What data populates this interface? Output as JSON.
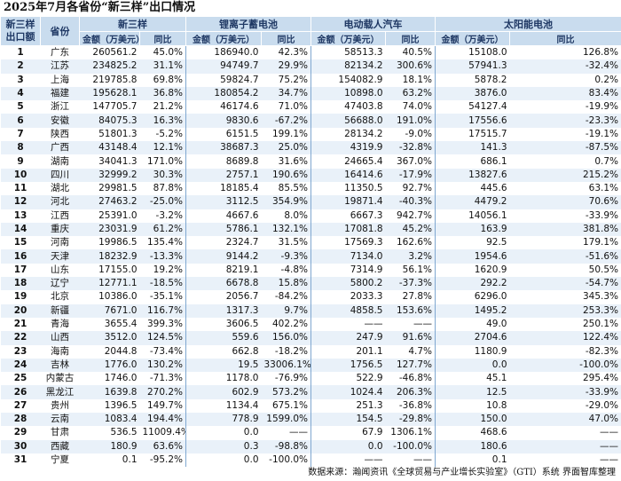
{
  "title": "2025年7月各省份“新三样”出口情况",
  "headers": {
    "rank": "新三样出口额",
    "province": "省份",
    "groups": [
      "新三样",
      "锂离子蓄电池",
      "电动载人汽车",
      "太阳能电池"
    ],
    "amount": "金额（万美元）",
    "yoy": "同比"
  },
  "rows": [
    {
      "rank": "1",
      "province": "广东",
      "v": [
        "260561.2",
        "45.0%",
        "186940.0",
        "42.3%",
        "58513.3",
        "40.5%",
        "15108.0",
        "126.8%"
      ]
    },
    {
      "rank": "2",
      "province": "江苏",
      "v": [
        "234825.2",
        "31.1%",
        "94749.7",
        "29.9%",
        "82134.2",
        "300.6%",
        "57941.3",
        "-32.4%"
      ]
    },
    {
      "rank": "3",
      "province": "上海",
      "v": [
        "219785.8",
        "69.8%",
        "59824.7",
        "75.2%",
        "154082.9",
        "18.1%",
        "5878.2",
        "0.2%"
      ]
    },
    {
      "rank": "4",
      "province": "福建",
      "v": [
        "195628.1",
        "36.8%",
        "180854.2",
        "34.7%",
        "10898.0",
        "63.2%",
        "3876.0",
        "83.4%"
      ]
    },
    {
      "rank": "5",
      "province": "浙江",
      "v": [
        "147705.7",
        "21.2%",
        "46174.6",
        "71.0%",
        "47403.8",
        "74.0%",
        "54127.4",
        "-19.9%"
      ]
    },
    {
      "rank": "6",
      "province": "安徽",
      "v": [
        "84075.3",
        "16.3%",
        "9830.6",
        "-67.2%",
        "56688.0",
        "191.0%",
        "17556.6",
        "-23.3%"
      ]
    },
    {
      "rank": "7",
      "province": "陕西",
      "v": [
        "51801.3",
        "-5.2%",
        "6151.5",
        "199.1%",
        "28134.2",
        "-9.0%",
        "17515.7",
        "-19.1%"
      ]
    },
    {
      "rank": "8",
      "province": "广西",
      "v": [
        "43148.4",
        "12.1%",
        "38687.3",
        "25.0%",
        "4319.9",
        "-32.8%",
        "141.3",
        "-87.5%"
      ]
    },
    {
      "rank": "9",
      "province": "湖南",
      "v": [
        "34041.3",
        "171.0%",
        "8689.8",
        "31.6%",
        "24665.4",
        "367.0%",
        "686.1",
        "0.7%"
      ]
    },
    {
      "rank": "10",
      "province": "四川",
      "v": [
        "32999.2",
        "30.3%",
        "2757.1",
        "190.6%",
        "16414.6",
        "-17.9%",
        "13827.6",
        "215.2%"
      ]
    },
    {
      "rank": "11",
      "province": "湖北",
      "v": [
        "29981.5",
        "87.8%",
        "18185.4",
        "85.5%",
        "11350.5",
        "92.7%",
        "445.6",
        "63.1%"
      ]
    },
    {
      "rank": "12",
      "province": "河北",
      "v": [
        "27463.2",
        "-25.0%",
        "3112.5",
        "354.9%",
        "19871.4",
        "-40.3%",
        "4479.2",
        "70.6%"
      ]
    },
    {
      "rank": "13",
      "province": "江西",
      "v": [
        "25391.0",
        "-3.2%",
        "4667.6",
        "8.0%",
        "6667.3",
        "942.7%",
        "14056.1",
        "-33.9%"
      ]
    },
    {
      "rank": "14",
      "province": "重庆",
      "v": [
        "23031.9",
        "61.2%",
        "5786.1",
        "132.1%",
        "17081.8",
        "45.2%",
        "163.9",
        "381.8%"
      ]
    },
    {
      "rank": "15",
      "province": "河南",
      "v": [
        "19986.5",
        "135.4%",
        "2324.7",
        "31.5%",
        "17569.3",
        "162.6%",
        "92.5",
        "179.1%"
      ]
    },
    {
      "rank": "16",
      "province": "天津",
      "v": [
        "18232.9",
        "-13.3%",
        "9144.2",
        "-9.3%",
        "7134.0",
        "3.2%",
        "1954.6",
        "-51.6%"
      ]
    },
    {
      "rank": "17",
      "province": "山东",
      "v": [
        "17155.0",
        "19.2%",
        "8219.1",
        "-4.8%",
        "7314.9",
        "56.1%",
        "1620.9",
        "50.5%"
      ]
    },
    {
      "rank": "18",
      "province": "辽宁",
      "v": [
        "12771.1",
        "-18.5%",
        "6678.8",
        "15.8%",
        "5800.2",
        "-37.3%",
        "292.2",
        "-54.7%"
      ]
    },
    {
      "rank": "19",
      "province": "北京",
      "v": [
        "10386.0",
        "-35.1%",
        "2056.7",
        "-84.2%",
        "2033.3",
        "27.8%",
        "6296.0",
        "345.3%"
      ]
    },
    {
      "rank": "20",
      "province": "新疆",
      "v": [
        "7671.0",
        "116.7%",
        "1317.3",
        "9.7%",
        "4858.5",
        "153.6%",
        "1495.2",
        "253.3%"
      ]
    },
    {
      "rank": "21",
      "province": "青海",
      "v": [
        "3655.4",
        "399.3%",
        "3606.5",
        "402.2%",
        "——",
        "——",
        "49.0",
        "250.1%"
      ]
    },
    {
      "rank": "22",
      "province": "山西",
      "v": [
        "3512.0",
        "124.5%",
        "559.6",
        "156.0%",
        "247.9",
        "91.6%",
        "2704.6",
        "122.4%"
      ]
    },
    {
      "rank": "23",
      "province": "海南",
      "v": [
        "2044.8",
        "-73.4%",
        "662.8",
        "-18.2%",
        "201.1",
        "4.7%",
        "1180.9",
        "-82.3%"
      ]
    },
    {
      "rank": "24",
      "province": "吉林",
      "v": [
        "1776.0",
        "130.2%",
        "19.5",
        "33006.1%",
        "1756.5",
        "127.7%",
        "0.0",
        "-100.0%"
      ]
    },
    {
      "rank": "25",
      "province": "内蒙古",
      "v": [
        "1746.0",
        "-71.3%",
        "1178.0",
        "-76.9%",
        "522.9",
        "-46.8%",
        "45.1",
        "295.4%"
      ]
    },
    {
      "rank": "26",
      "province": "黑龙江",
      "v": [
        "1639.8",
        "270.2%",
        "602.9",
        "573.2%",
        "1024.4",
        "206.3%",
        "12.5",
        "-33.9%"
      ]
    },
    {
      "rank": "27",
      "province": "贵州",
      "v": [
        "1396.5",
        "149.7%",
        "1134.4",
        "675.1%",
        "251.3",
        "-36.8%",
        "10.8",
        "-29.0%"
      ]
    },
    {
      "rank": "28",
      "province": "云南",
      "v": [
        "1083.4",
        "194.4%",
        "778.9",
        "1599.0%",
        "154.5",
        "-29.8%",
        "150.0",
        "47.0%"
      ]
    },
    {
      "rank": "29",
      "province": "甘肃",
      "v": [
        "536.5",
        "11009.4%",
        "0.0",
        "——",
        "67.9",
        "1306.1%",
        "468.6",
        "——"
      ]
    },
    {
      "rank": "30",
      "province": "西藏",
      "v": [
        "180.9",
        "63.6%",
        "0.3",
        "-98.8%",
        "0.0",
        "-100.0%",
        "180.6",
        "——"
      ]
    },
    {
      "rank": "31",
      "province": "宁夏",
      "v": [
        "0.1",
        "-95.2%",
        "0.0",
        "-100.0%",
        "——",
        "——",
        "0.1",
        "——"
      ]
    }
  ],
  "source": "数据来源：瀚闻资讯《全球贸易与产业增长实验室》（GTI）系统  界面智库整理"
}
